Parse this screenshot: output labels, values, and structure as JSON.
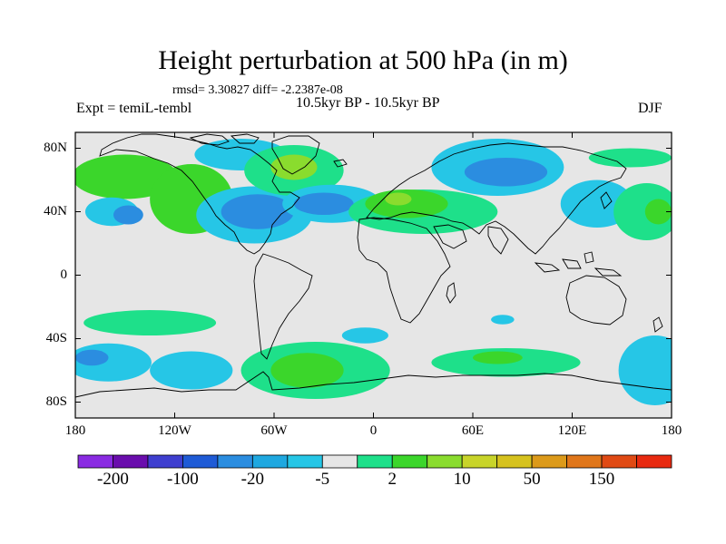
{
  "title": "Height perturbation at 500 hPa (in m)",
  "stats": "rmsd= 3.30827 diff= -2.2387e-08",
  "experiment": "Expt = temiL-tembl",
  "period": "10.5kyr BP - 10.5kyr BP",
  "season": "DJF",
  "map_data": {
    "projection": "cylindrical-equidistant",
    "lon_range": [
      -180,
      180
    ],
    "lat_range": [
      -90,
      90
    ],
    "lat_ticks": [
      {
        "label": "80N",
        "lat": 80
      },
      {
        "label": "40N",
        "lat": 40
      },
      {
        "label": "0",
        "lat": 0
      },
      {
        "label": "40S",
        "lat": -40
      },
      {
        "label": "80S",
        "lat": -80
      }
    ],
    "lon_ticks": [
      {
        "label": "180",
        "lon": -180
      },
      {
        "label": "120W",
        "lon": -120
      },
      {
        "label": "60W",
        "lon": -60
      },
      {
        "label": "0",
        "lon": 0
      },
      {
        "label": "60E",
        "lon": 60
      },
      {
        "label": "120E",
        "lon": 120
      },
      {
        "label": "180",
        "lon": 180
      }
    ],
    "anomaly_regions": [
      {
        "lon": -150,
        "lat": 62,
        "rlon": 32,
        "rlat": 14,
        "value": 5
      },
      {
        "lon": -110,
        "lat": 48,
        "rlon": 25,
        "rlat": 22,
        "value": 5
      },
      {
        "lon": -158,
        "lat": 40,
        "rlon": 16,
        "rlat": 9,
        "value": -5
      },
      {
        "lon": -148,
        "lat": 38,
        "rlon": 9,
        "rlat": 6,
        "value": -20
      },
      {
        "lon": -80,
        "lat": 76,
        "rlon": 28,
        "rlat": 10,
        "value": -5
      },
      {
        "lon": -72,
        "lat": 38,
        "rlon": 35,
        "rlat": 18,
        "value": -5
      },
      {
        "lon": -70,
        "lat": 40,
        "rlon": 22,
        "rlat": 11,
        "value": -20
      },
      {
        "lon": -48,
        "lat": 66,
        "rlon": 30,
        "rlat": 16,
        "value": 2
      },
      {
        "lon": -48,
        "lat": 68,
        "rlon": 14,
        "rlat": 8,
        "value": 10
      },
      {
        "lon": -25,
        "lat": 45,
        "rlon": 30,
        "rlat": 12,
        "value": -5
      },
      {
        "lon": -30,
        "lat": 45,
        "rlon": 18,
        "rlat": 7,
        "value": -20
      },
      {
        "lon": 30,
        "lat": 40,
        "rlon": 45,
        "rlat": 14,
        "value": 2
      },
      {
        "lon": 20,
        "lat": 45,
        "rlon": 25,
        "rlat": 9,
        "value": 5
      },
      {
        "lon": 15,
        "lat": 48,
        "rlon": 8,
        "rlat": 4,
        "value": 10
      },
      {
        "lon": 75,
        "lat": 68,
        "rlon": 40,
        "rlat": 18,
        "value": -5
      },
      {
        "lon": 80,
        "lat": 65,
        "rlon": 25,
        "rlat": 9,
        "value": -20
      },
      {
        "lon": 135,
        "lat": 45,
        "rlon": 22,
        "rlat": 15,
        "value": -5
      },
      {
        "lon": 165,
        "lat": 40,
        "rlon": 20,
        "rlat": 18,
        "value": 2
      },
      {
        "lon": 172,
        "lat": 40,
        "rlon": 8,
        "rlat": 8,
        "value": 5
      },
      {
        "lon": 155,
        "lat": 74,
        "rlon": 25,
        "rlat": 6,
        "value": 2
      },
      {
        "lon": -135,
        "lat": -30,
        "rlon": 40,
        "rlat": 8,
        "value": 2
      },
      {
        "lon": -160,
        "lat": -55,
        "rlon": 26,
        "rlat": 12,
        "value": -5
      },
      {
        "lon": -170,
        "lat": -52,
        "rlon": 10,
        "rlat": 5,
        "value": -20
      },
      {
        "lon": -110,
        "lat": -60,
        "rlon": 25,
        "rlat": 12,
        "value": -5
      },
      {
        "lon": -35,
        "lat": -60,
        "rlon": 45,
        "rlat": 18,
        "value": 2
      },
      {
        "lon": -40,
        "lat": -60,
        "rlon": 22,
        "rlat": 11,
        "value": 5
      },
      {
        "lon": 80,
        "lat": -55,
        "rlon": 45,
        "rlat": 9,
        "value": 2
      },
      {
        "lon": 75,
        "lat": -52,
        "rlon": 15,
        "rlat": 4,
        "value": 5
      },
      {
        "lon": 78,
        "lat": -28,
        "rlon": 7,
        "rlat": 3,
        "value": -5
      },
      {
        "lon": -5,
        "lat": -38,
        "rlon": 14,
        "rlat": 5,
        "value": -5
      },
      {
        "lon": 170,
        "lat": -60,
        "rlon": 22,
        "rlat": 22,
        "value": -5
      }
    ]
  },
  "colorbar": {
    "colors": [
      "#8a2be2",
      "#6a0dad",
      "#3f3fcf",
      "#1f5bd6",
      "#2b8de0",
      "#1fa8e0",
      "#26c6e6",
      "#e6e6e6",
      "#1ee08a",
      "#3bd62b",
      "#8adc2e",
      "#c8d42a",
      "#d6c21e",
      "#dc9a1a",
      "#e0761a",
      "#e04a14",
      "#e82a10"
    ],
    "labels": [
      {
        "text": "-200",
        "boundary": 1
      },
      {
        "text": "-100",
        "boundary": 3
      },
      {
        "text": "-20",
        "boundary": 5
      },
      {
        "text": "-5",
        "boundary": 7
      },
      {
        "text": "2",
        "boundary": 9
      },
      {
        "text": "10",
        "boundary": 11
      },
      {
        "text": "50",
        "boundary": 13
      },
      {
        "text": "150",
        "boundary": 15
      }
    ]
  },
  "colors": {
    "background": "#ffffff",
    "map_background": "#e6e6e6",
    "coastline": "#000000"
  }
}
